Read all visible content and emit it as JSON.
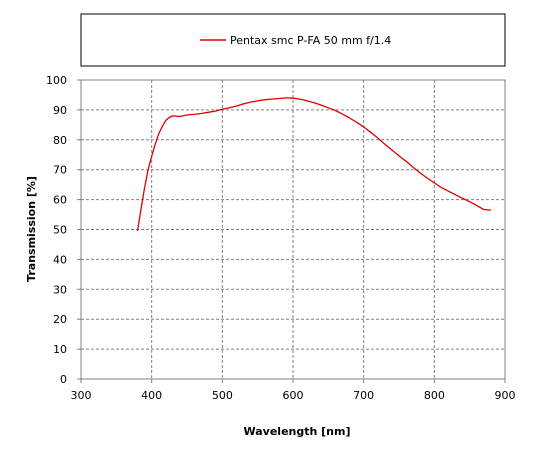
{
  "chart_data": {
    "type": "line",
    "title": "",
    "xlabel": "Wavelength [nm]",
    "ylabel": "Transmission [%]",
    "xlim": [
      300,
      900
    ],
    "ylim": [
      0,
      100
    ],
    "xticks": [
      300,
      400,
      500,
      600,
      700,
      800,
      900
    ],
    "yticks": [
      0,
      10,
      20,
      30,
      40,
      50,
      60,
      70,
      80,
      90,
      100
    ],
    "x_tick_labels": [
      "300",
      "400",
      "500",
      "600",
      "700",
      "800",
      "900"
    ],
    "y_tick_labels": [
      "0",
      "10",
      "20",
      "30",
      "40",
      "50",
      "60",
      "70",
      "80",
      "90",
      "100"
    ],
    "grid": true,
    "legend_placement": "top",
    "series": [
      {
        "name": "Pentax smc P-FA 50 mm f/1.4",
        "color": "#dd0000",
        "x": [
          380,
          385,
          390,
          395,
          400,
          405,
          410,
          415,
          420,
          425,
          430,
          440,
          450,
          460,
          470,
          480,
          490,
          500,
          510,
          520,
          530,
          540,
          550,
          560,
          570,
          580,
          590,
          600,
          610,
          620,
          630,
          640,
          650,
          660,
          670,
          680,
          690,
          700,
          710,
          720,
          730,
          740,
          750,
          760,
          770,
          780,
          790,
          800,
          810,
          820,
          830,
          840,
          850,
          860,
          870,
          880
        ],
        "values": [
          49.5,
          57,
          64,
          70,
          74.5,
          78.5,
          82,
          84.5,
          86.5,
          87.5,
          88,
          87.8,
          88.3,
          88.5,
          88.8,
          89.2,
          89.6,
          90.2,
          90.7,
          91.3,
          92.0,
          92.6,
          93.0,
          93.4,
          93.6,
          93.8,
          94.0,
          93.9,
          93.6,
          93.0,
          92.4,
          91.6,
          90.7,
          89.8,
          88.6,
          87.3,
          85.9,
          84.3,
          82.5,
          80.6,
          78.5,
          76.6,
          74.6,
          72.8,
          70.8,
          68.9,
          67.2,
          65.6,
          64.0,
          62.8,
          61.6,
          60.4,
          59.3,
          58.0,
          56.7,
          56.5
        ]
      }
    ]
  }
}
